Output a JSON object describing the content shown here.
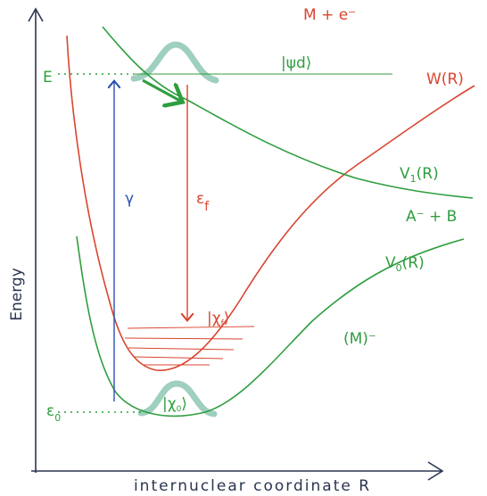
{
  "labels": {
    "continuum": "M + e⁻",
    "w_curve": "W(R)",
    "psi_d": "|ψd⟩",
    "energy_e": "E",
    "v1_curve": {
      "main": "V",
      "sub": "1",
      "tail": "(R)"
    },
    "asymptote": "A⁻ + B",
    "v0_curve": {
      "main": "V",
      "sub": "0",
      "tail": "(R)"
    },
    "gamma": "γ",
    "eps_f": {
      "main": "ε",
      "sub": "f"
    },
    "chi_f": {
      "main": "|χ",
      "sub": "f",
      "tail": "⟩"
    },
    "anion": "(M)⁻",
    "eps_0": {
      "main": "ε",
      "sub": "0"
    },
    "chi_0": {
      "main": "|χ",
      "sub": "0",
      "tail": "⟩"
    }
  },
  "axes": {
    "y_label": "Energy",
    "x_label": "internuclear coordinate R"
  }
}
